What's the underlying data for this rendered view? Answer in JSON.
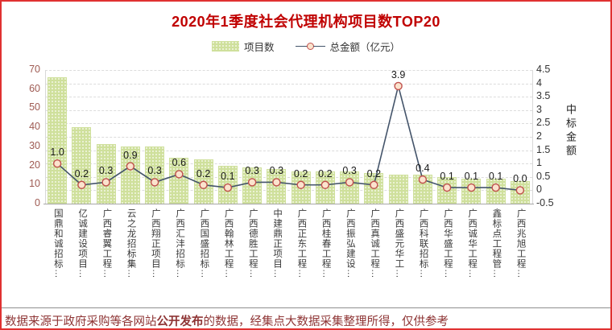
{
  "frame": {
    "border_color": "#e03131"
  },
  "header": {
    "title": "2020年1季度社会代理机构项目数TOP20",
    "title_color": "#c00000"
  },
  "legend": {
    "items": [
      {
        "label": "项目数",
        "swatch": "green-dotted-bar"
      },
      {
        "label": "总金额（亿元）",
        "swatch": "dark-line-red-circle-marker"
      }
    ]
  },
  "chart_data": {
    "type": "bar-line-combo",
    "title": "2020年1季度社会代理机构项目数TOP20",
    "legend_position": "top",
    "grid": "horizontal-dashed",
    "categories": [
      "国鼎和诚招标…",
      "亿诚建设项目…",
      "广西睿翼工程…",
      "云之龙招标集…",
      "广西翔正项目…",
      "广西汇沣招标…",
      "广西国盛招标…",
      "广西翰林工程…",
      "广西德胜工程…",
      "中建鼎正项目…",
      "广西正东工程…",
      "广西桂春工程…",
      "广西振弘建设…",
      "广西真诚工程…",
      "广西盛元华工…",
      "广西科联招标…",
      "广西华盛工程…",
      "广西诚华工程…",
      "鑫标点工程管…",
      "广西兆旭工程…"
    ],
    "series": [
      {
        "name": "项目数",
        "type": "bar",
        "axis": "left",
        "values": [
          66,
          40,
          31,
          30,
          30,
          24,
          23,
          20,
          19,
          18,
          17,
          17,
          17,
          16,
          15,
          15,
          14,
          13,
          13,
          12
        ]
      },
      {
        "name": "总金额（亿元）",
        "type": "line",
        "axis": "right",
        "values": [
          1.0,
          0.2,
          0.3,
          0.9,
          0.3,
          0.6,
          0.2,
          0.1,
          0.3,
          0.3,
          0.2,
          0.2,
          0.3,
          0.2,
          3.9,
          0.4,
          0.1,
          0.1,
          0.1,
          0.0
        ],
        "point_labels": [
          "1.0",
          "0.2",
          "0.3",
          "0.9",
          "0.3",
          "0.6",
          "0.2",
          "0.1",
          "0.3",
          "0.3",
          "0.2",
          "0.2",
          "0.3",
          "0.2",
          "3.9",
          "0.4",
          "0.1",
          "0.1",
          "0.1",
          "0.0"
        ]
      }
    ],
    "left_axis": {
      "min": 0,
      "max": 70,
      "step": 10
    },
    "right_axis": {
      "min": -0.5,
      "max": 4.5,
      "step": 0.5,
      "title": "中标金额"
    }
  },
  "colors": {
    "bar_fill": "#cfe09c",
    "bar_dot": "#ffffff",
    "line": "#44546a",
    "marker_fill": "#fbe3cd",
    "marker_stroke": "#c0504d",
    "left_tick": "#9e5a52",
    "right_tick": "#333333",
    "grid": "#dcdcdc",
    "category_label": "#3a3a3a",
    "data_label": "#1a1a1a",
    "footer_text": "#8e3434"
  },
  "footer": {
    "parts": [
      {
        "text": "数据来源于政府采购等各网站",
        "bold": false
      },
      {
        "text": "公开发布",
        "bold": true
      },
      {
        "text": "的数据，经集点大数据采集整理所得，仅供参考",
        "bold": false
      }
    ]
  }
}
